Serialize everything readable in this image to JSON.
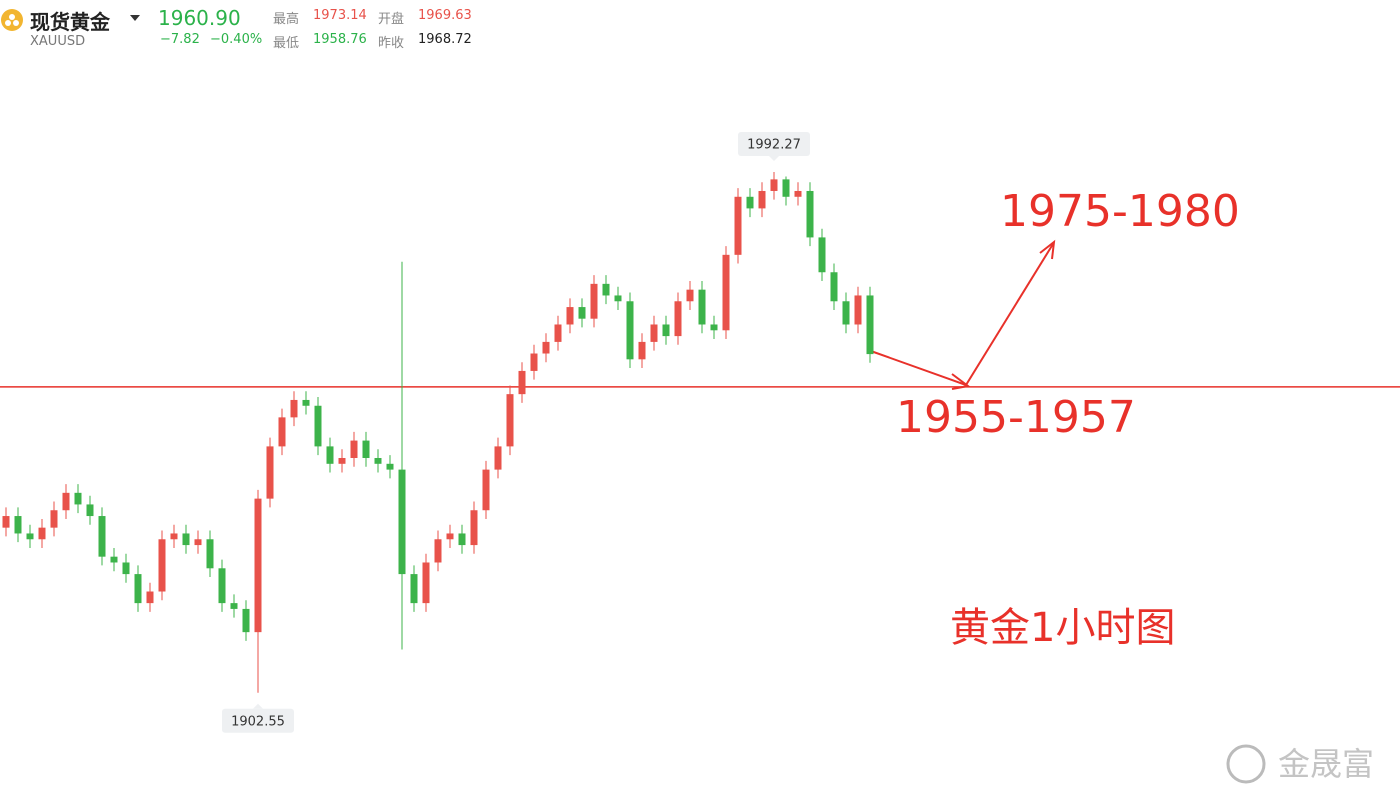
{
  "header": {
    "title": "现货黄金",
    "symbol": "XAUUSD",
    "price": "1960.90",
    "change": "−7.82",
    "change_pct": "−0.40%",
    "high_label": "最高",
    "high": "1973.14",
    "open_label": "开盘",
    "open": "1969.63",
    "low_label": "最低",
    "low": "1958.76",
    "prev_close_label": "昨收",
    "prev_close": "1968.72"
  },
  "chart_data": {
    "type": "candlestick",
    "up_color": "#e8524a",
    "down_color": "#3cb34a",
    "ylim": [
      1884.6,
      2021.9
    ],
    "open": [
      1931,
      1933,
      1930,
      1929,
      1931,
      1934,
      1937,
      1935,
      1933,
      1926,
      1925,
      1923,
      1918,
      1920,
      1929,
      1930,
      1928,
      1929,
      1924,
      1918,
      1917,
      1913,
      1936,
      1945,
      1950,
      1953,
      1952,
      1945,
      1942,
      1943,
      1946,
      1943,
      1942,
      1941,
      1923,
      1918,
      1925,
      1929,
      1930,
      1928,
      1934,
      1941,
      1945,
      1954,
      1958,
      1961,
      1963,
      1966,
      1969,
      1967,
      1973,
      1971,
      1970,
      1960,
      1963,
      1966,
      1964,
      1970,
      1972,
      1966,
      1965,
      1978,
      1988,
      1986,
      1989,
      1991,
      1988,
      1989,
      1981,
      1975,
      1970,
      1966,
      1971
    ],
    "high": [
      1934.5,
      1934.5,
      1931.5,
      1932.5,
      1935.5,
      1938.5,
      1938.5,
      1936.5,
      1934.5,
      1927.5,
      1926.5,
      1924.5,
      1921.5,
      1930.5,
      1931.5,
      1931.5,
      1930.5,
      1930.5,
      1925.5,
      1919.5,
      1918.5,
      1937.5,
      1946.5,
      1951.5,
      1954.5,
      1954.5,
      1953.5,
      1946.5,
      1944.5,
      1947.5,
      1947.5,
      1944.5,
      1943.5,
      1976.8,
      1924.5,
      1926.5,
      1930.5,
      1931.5,
      1931.5,
      1935.5,
      1942.5,
      1946.5,
      1955.5,
      1959.5,
      1962.5,
      1964.5,
      1967.5,
      1970.5,
      1970.5,
      1974.5,
      1974.5,
      1972.5,
      1971.5,
      1964.5,
      1967.5,
      1967.5,
      1971.5,
      1973.5,
      1973.5,
      1967.5,
      1979.5,
      1989.5,
      1989.5,
      1990.5,
      1992.27,
      1991.5,
      1990.5,
      1990.5,
      1982.5,
      1976.5,
      1971.5,
      1972.5,
      1972.5
    ],
    "low": [
      1929.5,
      1928.5,
      1927.5,
      1927.5,
      1929.5,
      1932.5,
      1933.5,
      1931.5,
      1924.5,
      1923.5,
      1921.5,
      1916.5,
      1916.5,
      1918.5,
      1927.5,
      1926.5,
      1926.5,
      1922.5,
      1916.5,
      1915.5,
      1911.5,
      1902.55,
      1934.5,
      1943.5,
      1948.5,
      1950.5,
      1943.5,
      1940.5,
      1940.5,
      1941.5,
      1941.5,
      1940.5,
      1939.5,
      1910,
      1916.5,
      1916.5,
      1923.5,
      1927.5,
      1926.5,
      1926.5,
      1932.5,
      1939.5,
      1943.5,
      1952.5,
      1956.5,
      1959.5,
      1961.5,
      1964.5,
      1965.5,
      1965.5,
      1969.5,
      1968.5,
      1958.5,
      1958.5,
      1961.5,
      1962.5,
      1962.5,
      1968.5,
      1964.5,
      1963.5,
      1963.5,
      1976.5,
      1984.5,
      1984.5,
      1987.5,
      1986.5,
      1986.5,
      1979.5,
      1973.5,
      1968.5,
      1964.5,
      1964.5,
      1959.4
    ],
    "close": [
      1933,
      1930,
      1929,
      1931,
      1934,
      1937,
      1935,
      1933,
      1926,
      1925,
      1923,
      1918,
      1920,
      1929,
      1930,
      1928,
      1929,
      1924,
      1918,
      1917,
      1913,
      1936,
      1945,
      1950,
      1953,
      1952,
      1945,
      1942,
      1943,
      1946,
      1943,
      1942,
      1941,
      1923,
      1918,
      1925,
      1929,
      1930,
      1928,
      1934,
      1941,
      1945,
      1954,
      1958,
      1961,
      1963,
      1966,
      1969,
      1967,
      1973,
      1971,
      1970,
      1960,
      1963,
      1966,
      1964,
      1970,
      1972,
      1966,
      1965,
      1978,
      1988,
      1986,
      1989,
      1991,
      1988,
      1989,
      1981,
      1975,
      1970,
      1966,
      1971,
      1960.9
    ],
    "support_line": 1955.25,
    "line_color": "#e8312a",
    "annotations": {
      "target_up": "1975-1980",
      "target_down": "1955-1957",
      "caption": "黄金1小时图"
    },
    "watermark": "金晟富"
  }
}
